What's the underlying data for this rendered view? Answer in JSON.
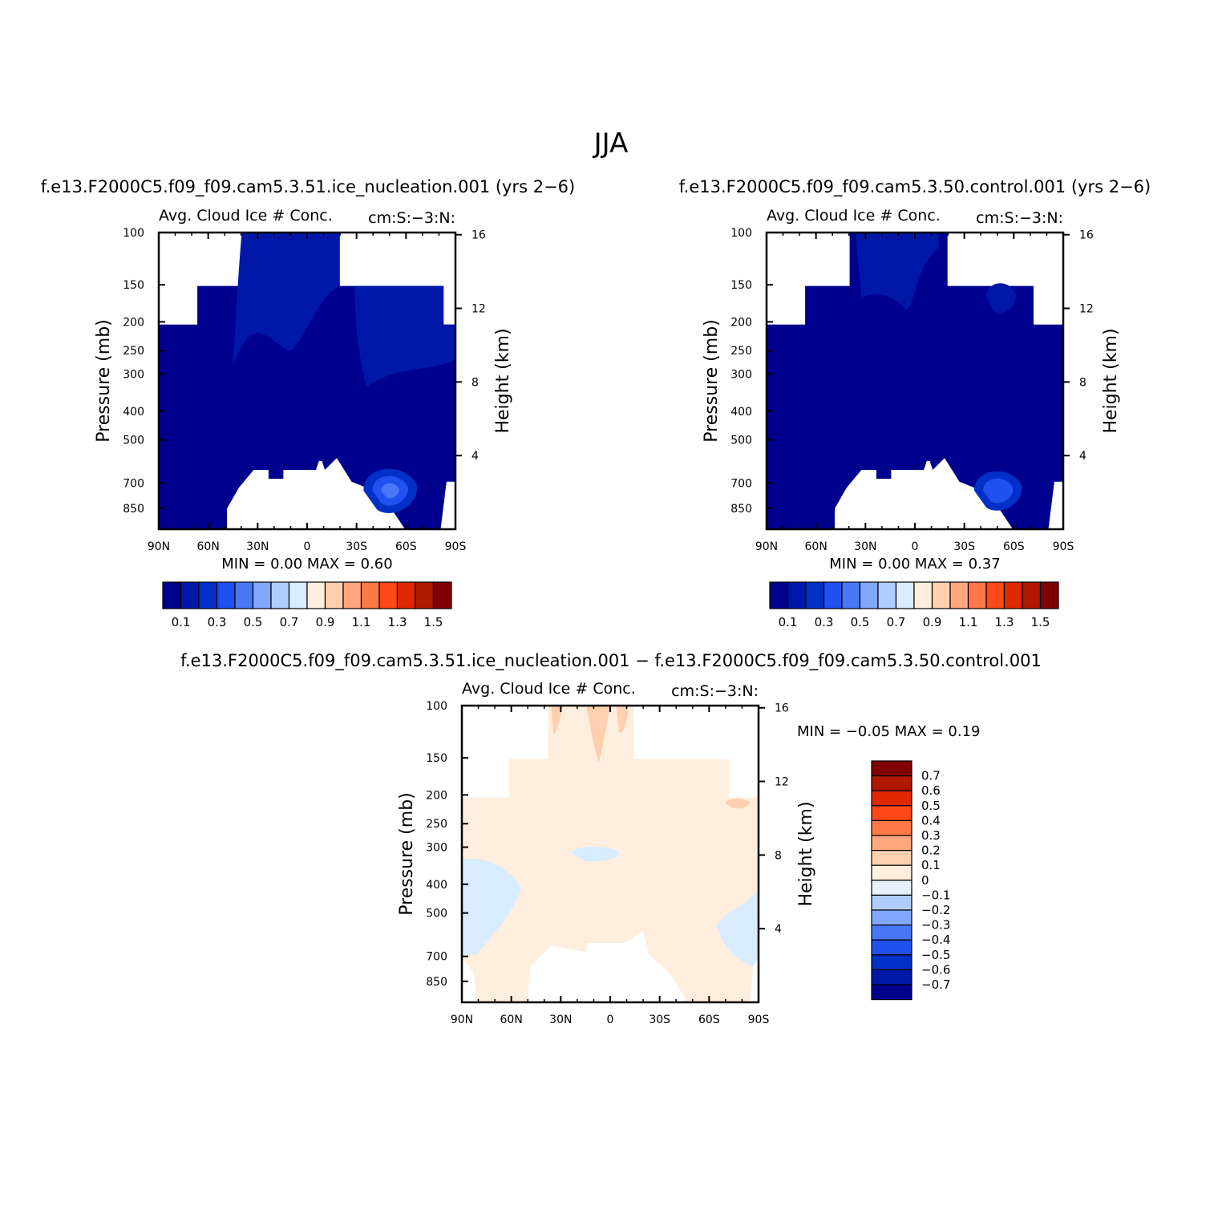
{
  "main_title": "JJA",
  "panels": {
    "p1": {
      "title": "f.e13.F2000C5.f09_f09.cam5.3.51.ice_nucleation.001 (yrs 2−6)",
      "subtitle": "Avg. Cloud Ice # Conc.",
      "units": "cm:S:−3:N:",
      "stats": "MIN =    0.00   MAX =    0.60"
    },
    "p2": {
      "title": "f.e13.F2000C5.f09_f09.cam5.3.50.control.001 (yrs 2−6)",
      "subtitle": "Avg. Cloud Ice # Conc.",
      "units": "cm:S:−3:N:",
      "stats": "MIN =    0.00   MAX =    0.37"
    },
    "p3": {
      "title": "f.e13.F2000C5.f09_f09.cam5.3.51.ice_nucleation.001 − f.e13.F2000C5.f09_f09.cam5.3.50.control.001",
      "subtitle": "Avg. Cloud Ice # Conc.",
      "units": "cm:S:−3:N:",
      "stats": "MIN =    −0.05   MAX =    0.19"
    }
  },
  "chart_data": [
    {
      "type": "heatmap",
      "name": "ice_nucleation.001",
      "xlabel": "",
      "ylabel": "Pressure (mb)",
      "ylabel_right": "Height (km)",
      "x_ticks": [
        "90N",
        "60N",
        "30N",
        "0",
        "30S",
        "60S",
        "90S"
      ],
      "y_ticks": [
        "100",
        "150",
        "200",
        "250",
        "300",
        "400",
        "500",
        "700",
        "850"
      ],
      "y_right_ticks": [
        "16",
        "12",
        "8",
        "4"
      ],
      "colorbar_levels": [
        "0.1",
        "0.3",
        "0.5",
        "0.7",
        "0.9",
        "1.1",
        "1.3",
        "1.5"
      ],
      "colorbar_colors": [
        "#00008f",
        "#0018a8",
        "#0030c8",
        "#2050f0",
        "#4878f8",
        "#80a8ff",
        "#b0cdff",
        "#d8ebff",
        "#ffeedd",
        "#ffcfb0",
        "#ffa880",
        "#ff7848",
        "#ff4818",
        "#e02800",
        "#b01800",
        "#800000"
      ],
      "min": 0.0,
      "max": 0.6
    },
    {
      "type": "heatmap",
      "name": "control.001",
      "xlabel": "",
      "ylabel": "Pressure (mb)",
      "ylabel_right": "Height (km)",
      "x_ticks": [
        "90N",
        "60N",
        "30N",
        "0",
        "30S",
        "60S",
        "90S"
      ],
      "y_ticks": [
        "100",
        "150",
        "200",
        "250",
        "300",
        "400",
        "500",
        "700",
        "850"
      ],
      "y_right_ticks": [
        "16",
        "12",
        "8",
        "4"
      ],
      "colorbar_levels": [
        "0.1",
        "0.3",
        "0.5",
        "0.7",
        "0.9",
        "1.1",
        "1.3",
        "1.5"
      ],
      "min": 0.0,
      "max": 0.37
    },
    {
      "type": "heatmap",
      "name": "difference",
      "xlabel": "",
      "ylabel": "Pressure (mb)",
      "ylabel_right": "Height (km)",
      "x_ticks": [
        "90N",
        "60N",
        "30N",
        "0",
        "30S",
        "60S",
        "90S"
      ],
      "y_ticks": [
        "100",
        "150",
        "200",
        "250",
        "300",
        "400",
        "500",
        "700",
        "850"
      ],
      "y_right_ticks": [
        "16",
        "12",
        "8",
        "4"
      ],
      "colorbar_levels": [
        "0.7",
        "0.6",
        "0.5",
        "0.4",
        "0.3",
        "0.2",
        "0.1",
        "0",
        "−0.1",
        "−0.2",
        "−0.3",
        "−0.4",
        "−0.5",
        "−0.6",
        "−0.7"
      ],
      "colorbar_colors": [
        "#800000",
        "#b01800",
        "#e02800",
        "#ff4818",
        "#ff7848",
        "#ffa880",
        "#ffcfb0",
        "#ffeedd",
        "#e8f0ff",
        "#b0cdff",
        "#80a8ff",
        "#4878f8",
        "#2050f0",
        "#0030c8",
        "#0018a8",
        "#00008f"
      ],
      "min": -0.05,
      "max": 0.19
    }
  ]
}
